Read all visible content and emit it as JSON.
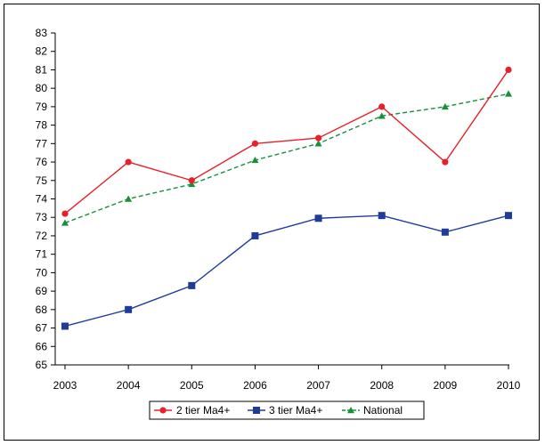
{
  "chart_data": {
    "type": "line",
    "title": "",
    "xlabel": "",
    "ylabel": "",
    "x": [
      2003,
      2004,
      2005,
      2006,
      2007,
      2008,
      2009,
      2010
    ],
    "ylim": [
      65,
      83
    ],
    "y_ticks": [
      65,
      66,
      67,
      68,
      69,
      70,
      71,
      72,
      73,
      74,
      75,
      76,
      77,
      78,
      79,
      80,
      81,
      82,
      83
    ],
    "grid": false,
    "legend_position": "bottom",
    "series": [
      {
        "name": "2 tier Ma4+",
        "color": "#e8202a",
        "marker": "circle",
        "dash": "solid",
        "values": [
          73.2,
          76.0,
          75.0,
          77.0,
          77.3,
          79.0,
          76.0,
          81.0
        ]
      },
      {
        "name": "3 tier Ma4+",
        "color": "#1f3c99",
        "marker": "square",
        "dash": "solid",
        "values": [
          67.1,
          68.0,
          69.3,
          72.0,
          72.95,
          73.1,
          72.2,
          73.1
        ]
      },
      {
        "name": "National",
        "color": "#18903a",
        "marker": "triangle",
        "dash": "dashed",
        "values": [
          72.7,
          74.0,
          74.8,
          76.1,
          77.0,
          78.5,
          79.0,
          79.7
        ]
      }
    ]
  }
}
